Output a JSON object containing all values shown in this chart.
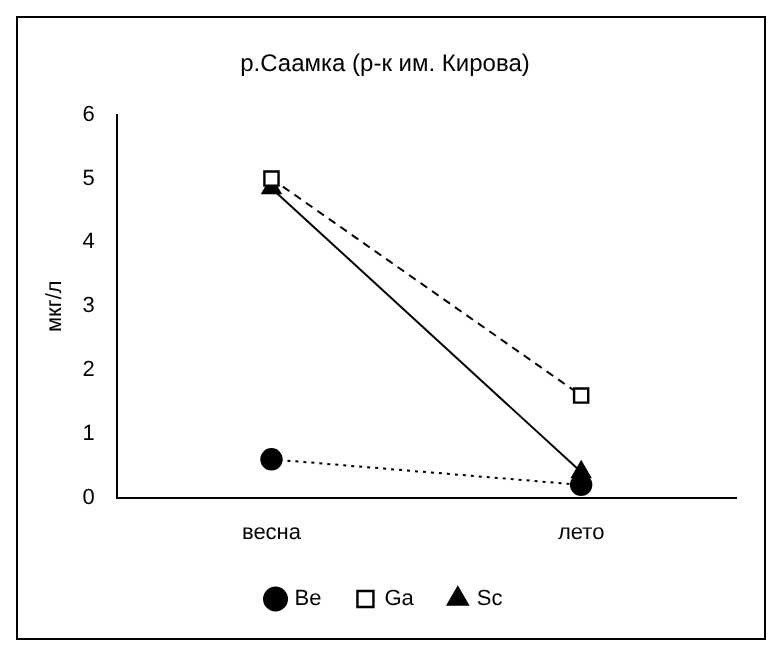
{
  "chart_data": {
    "type": "line",
    "title": "р.Саамка (р-к им. Кирова)",
    "ylabel": "мкг/л",
    "categories": [
      "весна",
      "лето"
    ],
    "series": [
      {
        "name": "Be",
        "color": "#000000",
        "values": [
          0.6,
          0.2
        ],
        "marker": "circle",
        "line_style": "dotted"
      },
      {
        "name": "Ga",
        "color": "#000000",
        "values": [
          5.0,
          1.6
        ],
        "marker": "square",
        "line_style": "dashed"
      },
      {
        "name": "Sc",
        "color": "#000000",
        "values": [
          4.85,
          0.4
        ],
        "marker": "triangle",
        "line_style": "solid"
      }
    ],
    "ylim": [
      0,
      6
    ],
    "yticks": [
      0,
      1,
      2,
      3,
      4,
      5,
      6
    ],
    "grid": false,
    "legend": "bottom"
  }
}
